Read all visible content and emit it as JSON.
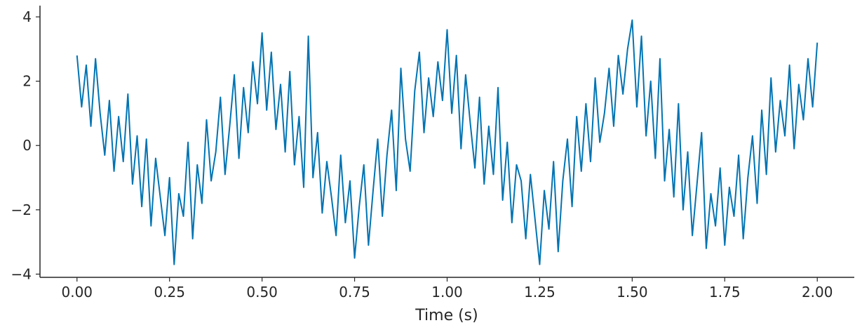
{
  "chart_data": {
    "type": "line",
    "xlabel": "Time (s)",
    "color": "#0173b2",
    "x": [
      0,
      0.0125,
      0.025,
      0.0375,
      0.05,
      0.0625,
      0.075,
      0.0875,
      0.1,
      0.1125,
      0.125,
      0.1375,
      0.15,
      0.1625,
      0.175,
      0.1875,
      0.2,
      0.2125,
      0.225,
      0.2375,
      0.25,
      0.2625,
      0.275,
      0.2875,
      0.3,
      0.3125,
      0.325,
      0.3375,
      0.35,
      0.3625,
      0.375,
      0.3875,
      0.4,
      0.4125,
      0.425,
      0.4375,
      0.45,
      0.4625,
      0.475,
      0.4875,
      0.5,
      0.5125,
      0.525,
      0.5375,
      0.55,
      0.5625,
      0.575,
      0.5875,
      0.6,
      0.6125,
      0.625,
      0.6375,
      0.65,
      0.6625,
      0.675,
      0.6875,
      0.7,
      0.7125,
      0.725,
      0.7375,
      0.75,
      0.7625,
      0.775,
      0.7875,
      0.8,
      0.8125,
      0.825,
      0.8375,
      0.85,
      0.8625,
      0.875,
      0.8875,
      0.9,
      0.9125,
      0.925,
      0.9375,
      0.95,
      0.9625,
      0.975,
      0.9875,
      1,
      1.0125,
      1.025,
      1.0375,
      1.05,
      1.0625,
      1.075,
      1.0875,
      1.1,
      1.1125,
      1.125,
      1.1375,
      1.15,
      1.1625,
      1.175,
      1.1875,
      1.2,
      1.2125,
      1.225,
      1.2375,
      1.25,
      1.2625,
      1.275,
      1.2875,
      1.3,
      1.3125,
      1.325,
      1.3375,
      1.35,
      1.3625,
      1.375,
      1.3875,
      1.4,
      1.4125,
      1.425,
      1.4375,
      1.45,
      1.4625,
      1.475,
      1.4875,
      1.5,
      1.5125,
      1.525,
      1.5375,
      1.55,
      1.5625,
      1.575,
      1.5875,
      1.6,
      1.6125,
      1.625,
      1.6375,
      1.65,
      1.6625,
      1.675,
      1.6875,
      1.7,
      1.7125,
      1.725,
      1.7375,
      1.75,
      1.7625,
      1.775,
      1.7875,
      1.8,
      1.8125,
      1.825,
      1.8375,
      1.85,
      1.8625,
      1.875,
      1.8875,
      1.9,
      1.9125,
      1.925,
      1.9375,
      1.95,
      1.9625,
      1.975,
      1.9875,
      2
    ],
    "values": [
      2.8,
      1.2,
      2.5,
      0.6,
      2.7,
      1.0,
      -0.3,
      1.4,
      -0.8,
      0.9,
      -0.5,
      1.6,
      -1.2,
      0.3,
      -1.9,
      0.2,
      -2.5,
      -0.4,
      -1.6,
      -2.8,
      -1.0,
      -3.7,
      -1.5,
      -2.2,
      0.1,
      -2.9,
      -0.6,
      -1.8,
      0.8,
      -1.1,
      -0.2,
      1.5,
      -0.9,
      0.6,
      2.2,
      -0.4,
      1.8,
      0.4,
      2.6,
      1.3,
      3.5,
      1.1,
      2.9,
      0.5,
      1.9,
      -0.2,
      2.3,
      -0.6,
      0.9,
      -1.3,
      3.4,
      -1.0,
      0.4,
      -2.1,
      -0.5,
      -1.6,
      -2.8,
      -0.3,
      -2.4,
      -1.1,
      -3.5,
      -1.9,
      -0.6,
      -3.1,
      -1.4,
      0.2,
      -2.2,
      -0.3,
      1.1,
      -1.4,
      2.4,
      0.2,
      -0.8,
      1.7,
      2.9,
      0.4,
      2.1,
      0.9,
      2.6,
      1.4,
      3.6,
      1.0,
      2.8,
      -0.1,
      2.2,
      0.7,
      -0.7,
      1.5,
      -1.2,
      0.6,
      -0.9,
      1.8,
      -1.7,
      0.1,
      -2.4,
      -0.6,
      -1.1,
      -2.9,
      -0.9,
      -2.3,
      -3.7,
      -1.4,
      -2.6,
      -0.5,
      -3.3,
      -1.1,
      0.2,
      -1.9,
      0.9,
      -0.8,
      1.3,
      -0.5,
      2.1,
      0.1,
      1.0,
      2.4,
      0.6,
      2.8,
      1.6,
      3.0,
      3.9,
      1.2,
      3.4,
      0.3,
      2.0,
      -0.4,
      2.7,
      -1.1,
      0.5,
      -1.6,
      1.3,
      -2.0,
      -0.2,
      -2.8,
      -1.2,
      0.4,
      -3.2,
      -1.5,
      -2.5,
      -0.7,
      -3.1,
      -1.3,
      -2.2,
      -0.3,
      -2.9,
      -1.0,
      0.3,
      -1.8,
      1.1,
      -0.9,
      2.1,
      -0.2,
      1.4,
      0.3,
      2.5,
      -0.1,
      1.9,
      0.8,
      2.7,
      1.2,
      3.2
    ],
    "xlim": [
      -0.1,
      2.1
    ],
    "xticks": [
      {
        "value": 0,
        "label": "0.00"
      },
      {
        "value": 0.25,
        "label": "0.25"
      },
      {
        "value": 0.5,
        "label": "0.50"
      },
      {
        "value": 0.75,
        "label": "0.75"
      },
      {
        "value": 1,
        "label": "1.00"
      },
      {
        "value": 1.25,
        "label": "1.25"
      },
      {
        "value": 1.5,
        "label": "1.50"
      },
      {
        "value": 1.75,
        "label": "1.75"
      },
      {
        "value": 2,
        "label": "2.00"
      }
    ],
    "ylim": [
      -4.1,
      4.35
    ],
    "yticks": [
      {
        "value": -4,
        "label": "−4"
      },
      {
        "value": -2,
        "label": "−2"
      },
      0,
      2,
      4
    ]
  }
}
